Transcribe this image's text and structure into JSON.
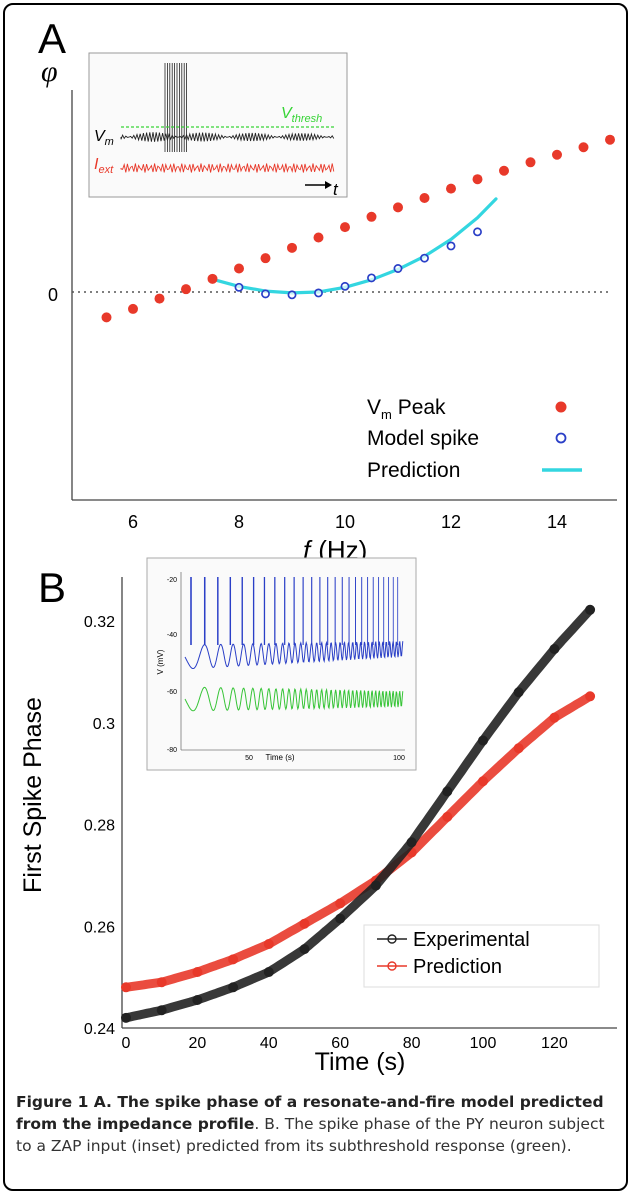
{
  "panels": {
    "a": "A",
    "b": "B"
  },
  "chart_data": [
    {
      "type": "scatter",
      "title": "",
      "ylabel": "φ",
      "xlabel": "f (Hz)",
      "xlabel_var": "f",
      "xlabel_unit": "(Hz)",
      "xlim": [
        5.2,
        15
      ],
      "xticks": [
        "6",
        "8",
        "10",
        "12",
        "14"
      ],
      "ytick_zero": "0",
      "legend_position": "bottom-right",
      "legend": {
        "vm_peak": {
          "main": "V",
          "sub": "m",
          "rest": " Peak"
        },
        "model_spike": "Model spike",
        "prediction": "Prediction"
      },
      "series": [
        {
          "name": "Vm Peak",
          "color": "#e8392a",
          "x": [
            5.5,
            6,
            6.5,
            7,
            7.5,
            8,
            8.5,
            9,
            9.5,
            10,
            10.5,
            11,
            11.5,
            12,
            12.5,
            13,
            13.5,
            14,
            14.5,
            15
          ],
          "y": [
            -0.27,
            -0.18,
            -0.07,
            0.03,
            0.14,
            0.25,
            0.36,
            0.47,
            0.58,
            0.69,
            0.8,
            0.9,
            1.0,
            1.1,
            1.2,
            1.29,
            1.38,
            1.46,
            1.54,
            1.62
          ]
        },
        {
          "name": "Model spike",
          "color": "#2a3fc7",
          "x": [
            8,
            8.5,
            9,
            9.5,
            10,
            10.5,
            11,
            11.5,
            12,
            12.5
          ],
          "y": [
            0.05,
            -0.02,
            -0.03,
            -0.01,
            0.06,
            0.15,
            0.25,
            0.36,
            0.49,
            0.64
          ]
        },
        {
          "name": "Prediction",
          "color": "#33d6e0",
          "x": [
            7.6,
            8,
            8.5,
            9,
            9.5,
            10,
            10.5,
            11,
            11.5,
            12,
            12.5,
            12.85
          ],
          "y": [
            0.12,
            0.06,
            0.01,
            -0.01,
            0.0,
            0.05,
            0.13,
            0.24,
            0.38,
            0.56,
            0.79,
            0.99
          ]
        }
      ],
      "inset": {
        "labels": {
          "vm": {
            "main": "V",
            "sub": "m"
          },
          "iext": {
            "main": "I",
            "sub": "ext"
          },
          "vthresh": {
            "main": "V",
            "sub": "thresh"
          },
          "t": "t"
        }
      }
    },
    {
      "type": "line",
      "title": "",
      "xlabel": "Time (s)",
      "ylabel": "First Spike Phase",
      "xlim": [
        0,
        130
      ],
      "ylim": [
        0.24,
        0.327
      ],
      "xticks": [
        0,
        20,
        40,
        60,
        80,
        100,
        120
      ],
      "yticks": [
        0.24,
        0.26,
        0.28,
        0.3,
        0.32
      ],
      "ytick_labels": [
        "0.24",
        "0.26",
        "0.28",
        "0.3",
        "0.32"
      ],
      "xtick_labels": [
        "0",
        "20",
        "40",
        "60",
        "80",
        "100",
        "120"
      ],
      "legend_position": "bottom-right",
      "series": [
        {
          "name": "Experimental",
          "color": "#222222",
          "x": [
            0,
            10,
            20,
            30,
            40,
            50,
            60,
            70,
            80,
            90,
            100,
            110,
            120,
            130
          ],
          "y": [
            0.242,
            0.2435,
            0.2455,
            0.248,
            0.251,
            0.2555,
            0.2615,
            0.268,
            0.2765,
            0.2865,
            0.2965,
            0.306,
            0.3145,
            0.3222
          ]
        },
        {
          "name": "Prediction",
          "color": "#e8392a",
          "x": [
            0,
            10,
            20,
            30,
            40,
            50,
            60,
            70,
            80,
            90,
            100,
            110,
            120,
            130
          ],
          "y": [
            0.248,
            0.249,
            0.251,
            0.2535,
            0.2565,
            0.2605,
            0.2645,
            0.269,
            0.2745,
            0.2815,
            0.2885,
            0.295,
            0.301,
            0.3052
          ]
        }
      ],
      "inset": {
        "xlabel": "Time (s)",
        "ylabel": "V (mV)",
        "xticks": [
          "50",
          "100"
        ],
        "yticks": [
          "-20",
          "-40",
          "-60",
          "-80"
        ]
      }
    }
  ],
  "caption": {
    "bold": "Figure 1 A. The spike phase of a resonate-and-fire model predicted from the impedance profile",
    "rest": ". B. The spike phase of the PY neuron subject to a ZAP input (inset) predicted from its subthreshold response (green)."
  }
}
